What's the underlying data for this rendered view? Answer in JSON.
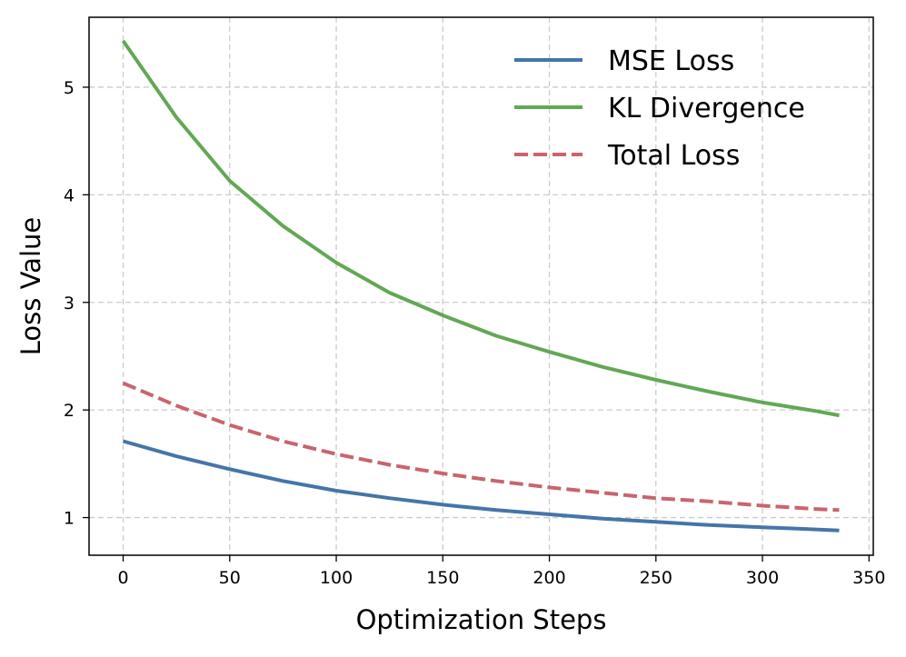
{
  "chart_data": {
    "type": "line",
    "title": "",
    "xlabel": "Optimization Steps",
    "ylabel": "Loss Value",
    "xlim": [
      -16,
      352
    ],
    "ylim": [
      0.65,
      5.65
    ],
    "xticks": [
      0,
      50,
      100,
      150,
      200,
      250,
      300,
      350
    ],
    "yticks": [
      1,
      2,
      3,
      4,
      5
    ],
    "grid": true,
    "legend_position": "top-right",
    "x": [
      0,
      25,
      50,
      75,
      100,
      125,
      150,
      175,
      200,
      225,
      250,
      275,
      300,
      325,
      336
    ],
    "series": [
      {
        "name": "MSE Loss",
        "color": "#4575a8",
        "style": "solid",
        "values": [
          1.71,
          1.57,
          1.45,
          1.34,
          1.25,
          1.18,
          1.12,
          1.07,
          1.03,
          0.99,
          0.96,
          0.93,
          0.91,
          0.89,
          0.88
        ]
      },
      {
        "name": "KL Divergence",
        "color": "#62a854",
        "style": "solid",
        "values": [
          5.43,
          4.72,
          4.13,
          3.71,
          3.37,
          3.09,
          2.88,
          2.69,
          2.54,
          2.4,
          2.28,
          2.17,
          2.07,
          1.99,
          1.95
        ]
      },
      {
        "name": "Total Loss",
        "color": "#c9646f",
        "style": "dashed",
        "values": [
          2.25,
          2.04,
          1.86,
          1.71,
          1.59,
          1.49,
          1.41,
          1.34,
          1.28,
          1.23,
          1.18,
          1.15,
          1.11,
          1.08,
          1.07
        ]
      }
    ]
  }
}
